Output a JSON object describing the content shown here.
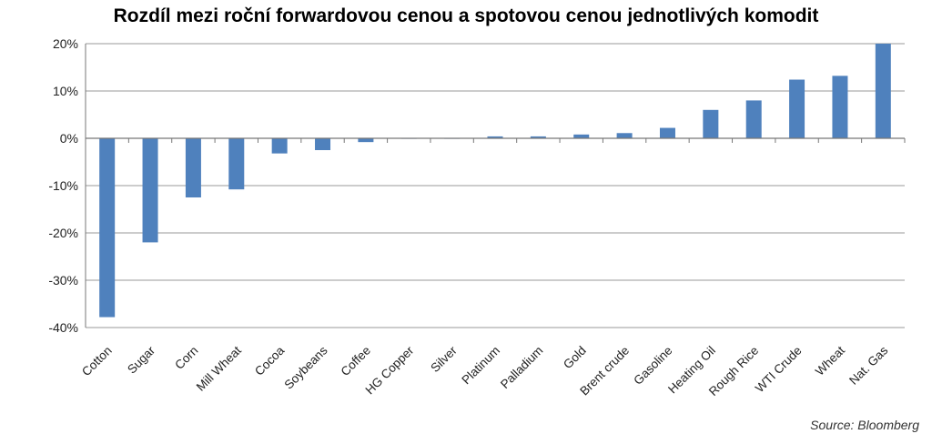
{
  "title": "Rozdíl mezi roční forwardovou cenou a spotovou cenou jednotlivých komodit",
  "source": "Source: Bloomberg",
  "colors": {
    "bar": "#4F81BD",
    "grid": "#9a9a9a",
    "axis": "#777777"
  },
  "chart_data": {
    "type": "bar",
    "title": "Rozdíl mezi roční forwardovou cenou a spotovou cenou jednotlivých komodit",
    "xlabel": "",
    "ylabel": "",
    "ylim": [
      -40,
      20
    ],
    "yticks": [
      -40,
      -30,
      -20,
      -10,
      0,
      10,
      20
    ],
    "ytick_labels": [
      "-40%",
      "-30%",
      "-20%",
      "-10%",
      "0%",
      "10%",
      "20%"
    ],
    "grid": true,
    "categories": [
      "Cotton",
      "Sugar",
      "Corn",
      "Mill Wheat",
      "Cocoa",
      "Soybeans",
      "Coffee",
      "HG Copper",
      "Silver",
      "Platinum",
      "Palladium",
      "Gold",
      "Brent crude",
      "Gasoline",
      "Heating Oil",
      "Rough Rice",
      "WTI Crude",
      "Wheat",
      "Nat. Gas"
    ],
    "values": [
      -37.8,
      -22.0,
      -12.5,
      -10.8,
      -3.2,
      -2.5,
      -0.8,
      -0.1,
      -0.1,
      0.4,
      0.4,
      0.8,
      1.1,
      2.2,
      6.0,
      8.0,
      12.4,
      13.2,
      20.0
    ]
  }
}
